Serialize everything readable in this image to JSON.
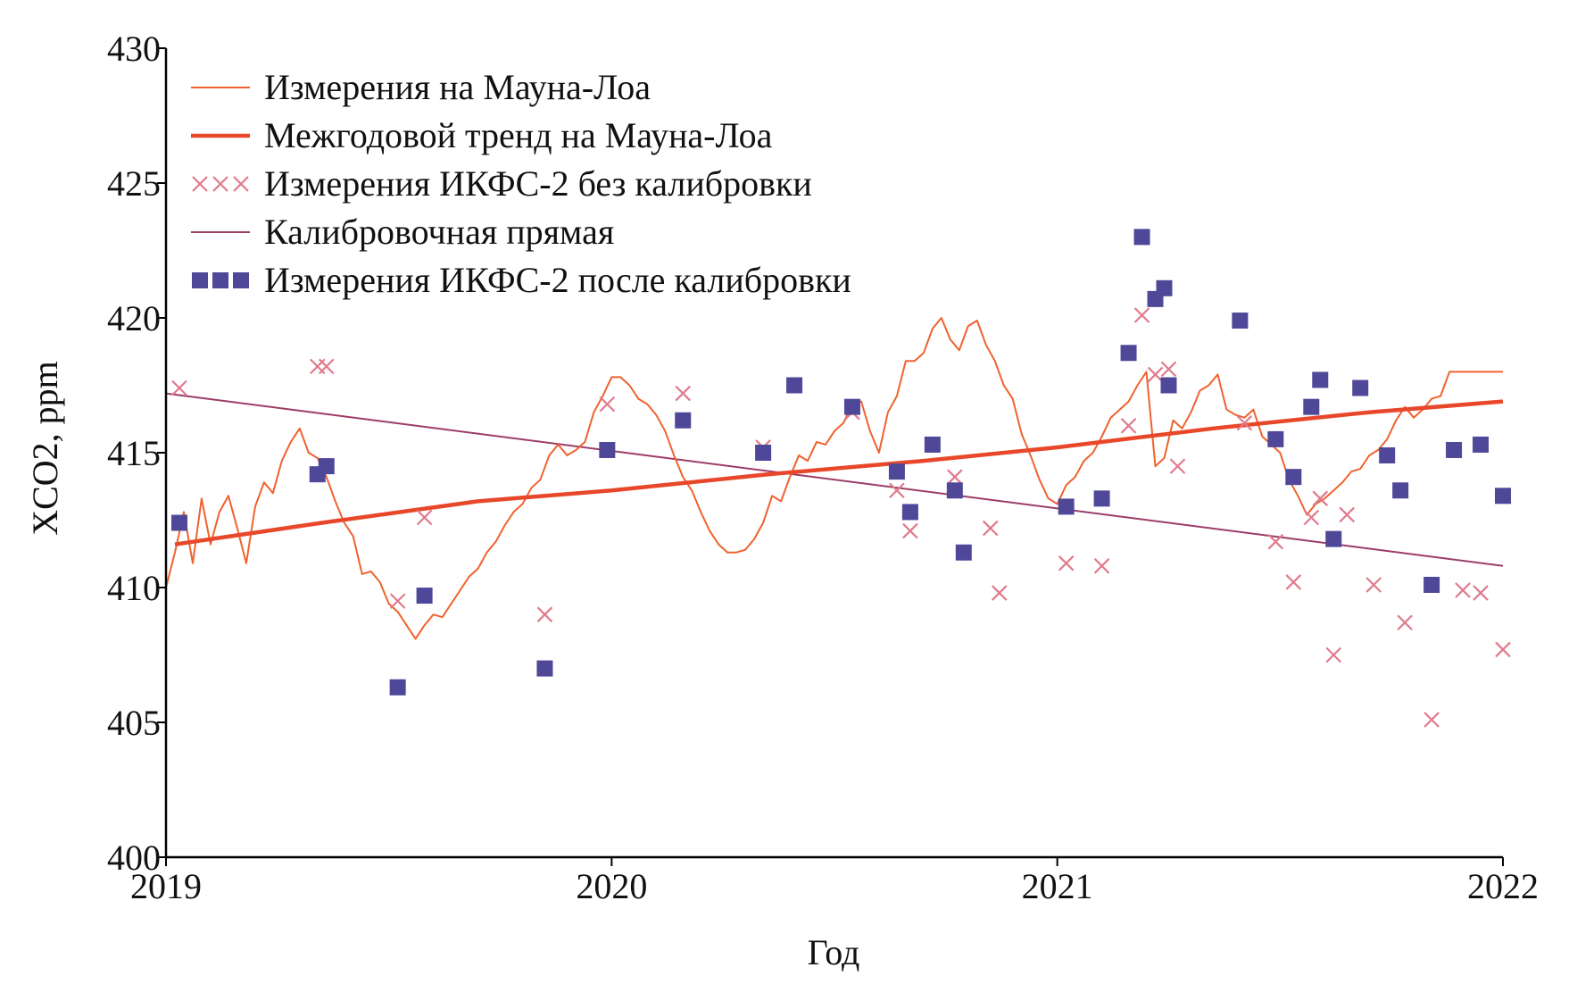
{
  "chart_data": {
    "type": "line",
    "xlabel": "Год",
    "ylabel": "XCO2, ppm",
    "xlim": [
      2019,
      2022
    ],
    "ylim": [
      400,
      430
    ],
    "x_ticks": [
      "2019",
      "2020",
      "2021",
      "2022"
    ],
    "y_ticks": [
      "400",
      "405",
      "410",
      "415",
      "420",
      "425",
      "430"
    ],
    "grid": false,
    "legend_position": "top-left",
    "colors": {
      "mauna_loa": "#f0622e",
      "trend": "#e8472a",
      "uncalibrated": "#e07a8c",
      "calibration_line": "#9c3d68",
      "calibrated": "#4f4899",
      "axis": "#000000"
    },
    "legend": [
      {
        "label": "Измерения на Мауна-Лоа",
        "marker": "thin-line"
      },
      {
        "label": "Межгодовой тренд на Мауна-Лоа",
        "marker": "thick-line"
      },
      {
        "label": "Измерения ИКФС-2 без калибровки",
        "marker": "cross"
      },
      {
        "label": "Калибровочная прямая",
        "marker": "thin-line"
      },
      {
        "label": "Измерения ИКФС-2 после калибровки",
        "marker": "square"
      }
    ],
    "series": [
      {
        "name": "Измерения на Мауна-Лоа",
        "kind": "line",
        "x": [
          2019.0,
          2019.02,
          2019.04,
          2019.06,
          2019.08,
          2019.1,
          2019.12,
          2019.14,
          2019.16,
          2019.18,
          2019.2,
          2019.22,
          2019.24,
          2019.26,
          2019.28,
          2019.3,
          2019.32,
          2019.34,
          2019.36,
          2019.38,
          2019.4,
          2019.42,
          2019.44,
          2019.46,
          2019.48,
          2019.5,
          2019.52,
          2019.54,
          2019.56,
          2019.58,
          2019.6,
          2019.62,
          2019.64,
          2019.66,
          2019.68,
          2019.7,
          2019.72,
          2019.74,
          2019.76,
          2019.78,
          2019.8,
          2019.82,
          2019.84,
          2019.86,
          2019.88,
          2019.9,
          2019.92,
          2019.94,
          2019.96,
          2019.98,
          2020.0,
          2020.02,
          2020.04,
          2020.06,
          2020.08,
          2020.1,
          2020.12,
          2020.14,
          2020.16,
          2020.18,
          2020.2,
          2020.22,
          2020.24,
          2020.26,
          2020.28,
          2020.3,
          2020.32,
          2020.34,
          2020.36,
          2020.38,
          2020.4,
          2020.42,
          2020.44,
          2020.46,
          2020.48,
          2020.5,
          2020.52,
          2020.54,
          2020.56,
          2020.58,
          2020.6,
          2020.62,
          2020.64,
          2020.66,
          2020.68,
          2020.7,
          2020.72,
          2020.74,
          2020.76,
          2020.78,
          2020.8,
          2020.82,
          2020.84,
          2020.86,
          2020.88,
          2020.9,
          2020.92,
          2020.94,
          2020.96,
          2020.98,
          2021.0,
          2021.02,
          2021.04,
          2021.06,
          2021.08,
          2021.1,
          2021.12,
          2021.14,
          2021.16,
          2021.18,
          2021.2,
          2021.22,
          2021.24,
          2021.26,
          2021.28,
          2021.3,
          2021.32,
          2021.34,
          2021.36,
          2021.38,
          2021.4,
          2021.42,
          2021.44,
          2021.46,
          2021.48,
          2021.5,
          2021.52,
          2021.54,
          2021.56,
          2021.58,
          2021.6,
          2021.62,
          2021.64,
          2021.66,
          2021.68,
          2021.7,
          2021.72,
          2021.74,
          2021.76,
          2021.78,
          2021.8,
          2021.82,
          2021.84,
          2021.86,
          2021.88,
          2021.9,
          2021.92,
          2021.94,
          2021.96,
          2021.98,
          2022.0
        ],
        "y": [
          410.0,
          411.3,
          412.8,
          410.9,
          413.3,
          411.6,
          412.8,
          413.4,
          412.2,
          410.9,
          413.0,
          413.9,
          413.5,
          414.7,
          415.4,
          415.9,
          415.0,
          414.8,
          414.1,
          413.2,
          412.4,
          411.9,
          410.5,
          410.6,
          410.2,
          409.4,
          409.1,
          408.6,
          408.1,
          408.6,
          409.0,
          408.9,
          409.4,
          409.9,
          410.4,
          410.7,
          411.3,
          411.7,
          412.3,
          412.8,
          413.1,
          413.7,
          414.0,
          414.9,
          415.3,
          414.9,
          415.1,
          415.4,
          416.5,
          417.1,
          417.8,
          417.8,
          417.5,
          417.0,
          416.8,
          416.4,
          415.8,
          414.9,
          414.1,
          413.6,
          412.8,
          412.1,
          411.6,
          411.3,
          411.3,
          411.4,
          411.8,
          412.4,
          413.4,
          413.2,
          414.1,
          414.9,
          414.7,
          415.4,
          415.3,
          415.8,
          416.1,
          416.8,
          416.9,
          415.8,
          415.0,
          416.5,
          417.1,
          418.4,
          418.4,
          418.7,
          419.6,
          420.0,
          419.2,
          418.8,
          419.7,
          419.9,
          419.0,
          418.4,
          417.5,
          417.0,
          415.7,
          414.9,
          414.0,
          413.3,
          413.1,
          413.8,
          414.1,
          414.7,
          415.0,
          415.6,
          416.3,
          416.6,
          416.9,
          417.5,
          418.0,
          414.5,
          414.8,
          416.2,
          415.9,
          416.5,
          417.3,
          417.5,
          417.9,
          416.6,
          416.4,
          416.3,
          416.6,
          415.6,
          415.3,
          415.0,
          414.0,
          413.4,
          412.7,
          413.1,
          413.3,
          413.6,
          413.9,
          414.3,
          414.4,
          414.9,
          415.1,
          415.5,
          416.2,
          416.7,
          416.3,
          416.6,
          417.0,
          417.1,
          418.0,
          418.0,
          418.0,
          418.0,
          418.0,
          418.0,
          418.0
        ]
      },
      {
        "name": "Межгодовой тренд на Мауна-Лоа",
        "kind": "line",
        "x": [
          2019.02,
          2019.35,
          2019.7,
          2020.0,
          2020.35,
          2020.7,
          2021.0,
          2021.35,
          2021.7,
          2022.0
        ],
        "y": [
          411.6,
          412.4,
          413.2,
          413.6,
          414.2,
          414.7,
          415.2,
          415.9,
          416.5,
          416.9
        ]
      },
      {
        "name": "Калибровочная прямая",
        "kind": "line",
        "x": [
          2019.0,
          2022.0
        ],
        "y": [
          417.2,
          410.8
        ]
      },
      {
        "name": "Измерения ИКФС-2 без калибровки",
        "kind": "scatter",
        "marker": "cross",
        "x": [
          2019.03,
          2019.34,
          2019.36,
          2019.52,
          2019.58,
          2019.85,
          2019.99,
          2020.16,
          2020.34,
          2020.54,
          2020.64,
          2020.67,
          2020.77,
          2020.85,
          2020.87,
          2021.02,
          2021.1,
          2021.16,
          2021.19,
          2021.22,
          2021.25,
          2021.27,
          2021.42,
          2021.49,
          2021.53,
          2021.57,
          2021.59,
          2021.62,
          2021.65,
          2021.71,
          2021.78,
          2021.84,
          2021.91,
          2021.95,
          2022.0
        ],
        "y": [
          417.4,
          418.2,
          418.2,
          409.5,
          412.6,
          409.0,
          416.8,
          417.2,
          415.2,
          416.5,
          413.6,
          412.1,
          414.1,
          412.2,
          409.8,
          410.9,
          410.8,
          416.0,
          420.1,
          417.9,
          418.1,
          414.5,
          416.1,
          411.7,
          410.2,
          412.6,
          413.3,
          407.5,
          412.7,
          410.1,
          408.7,
          405.1,
          409.9,
          409.8,
          407.7
        ]
      },
      {
        "name": "Измерения ИКФС-2 после калибровки",
        "kind": "scatter",
        "marker": "square",
        "x": [
          2019.03,
          2019.34,
          2019.36,
          2019.52,
          2019.58,
          2019.85,
          2019.99,
          2020.16,
          2020.34,
          2020.41,
          2020.54,
          2020.64,
          2020.67,
          2020.72,
          2020.77,
          2020.79,
          2021.02,
          2021.1,
          2021.16,
          2021.19,
          2021.22,
          2021.24,
          2021.25,
          2021.41,
          2021.49,
          2021.53,
          2021.57,
          2021.59,
          2021.62,
          2021.68,
          2021.74,
          2021.77,
          2021.84,
          2021.89,
          2021.95,
          2022.0
        ],
        "y": [
          412.4,
          414.2,
          414.5,
          406.3,
          409.7,
          407.0,
          415.1,
          416.2,
          415.0,
          417.5,
          416.7,
          414.3,
          412.8,
          415.3,
          413.6,
          411.3,
          413.0,
          413.3,
          418.7,
          423.0,
          420.7,
          421.1,
          417.5,
          419.9,
          415.5,
          414.1,
          416.7,
          417.7,
          411.8,
          417.4,
          414.9,
          413.6,
          410.1,
          415.1,
          415.3,
          413.4
        ]
      }
    ]
  }
}
